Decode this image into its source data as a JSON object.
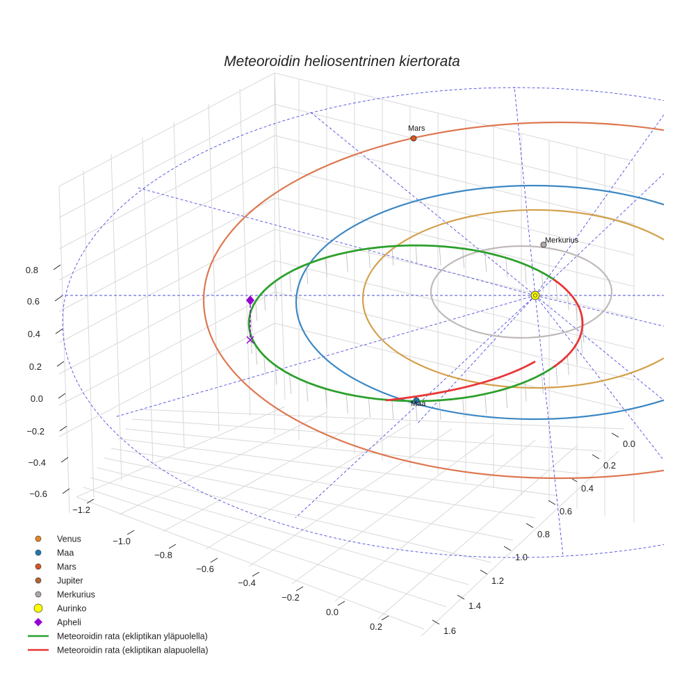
{
  "chart_data": {
    "type": "scatter",
    "title": "Meteoroidin heliosentrinen kiertorata",
    "xlabel": "",
    "ylabel": "",
    "zlabel": "",
    "x_ticks": [
      "−1.2",
      "−1.0",
      "−0.8",
      "−0.6",
      "−0.4",
      "−0.2",
      "0.0",
      "0.2"
    ],
    "y_ticks": [
      "0.0",
      "0.2",
      "0.4",
      "0.6",
      "0.8",
      "1.0",
      "1.2",
      "1.4",
      "1.6"
    ],
    "z_ticks": [
      "0.8",
      "0.6",
      "0.4",
      "0.2",
      "0.0",
      "−0.2",
      "−0.4",
      "−0.6"
    ],
    "grid": true,
    "legend_position": "bottom-left",
    "orbits": [
      {
        "name": "Merkurius",
        "color": "#bfbab8"
      },
      {
        "name": "Venus",
        "color": "#d4a04c"
      },
      {
        "name": "Maa",
        "color": "#3b87c4"
      },
      {
        "name": "Mars",
        "color": "#dd7750"
      }
    ],
    "points": [
      {
        "name": "Mars",
        "label": "Mars",
        "color": "#d9531e"
      },
      {
        "name": "Merkurius",
        "label": "Merkurius",
        "color": "#b0a8a8"
      },
      {
        "name": "Maa",
        "label": "Maa",
        "color": "#1f77b4"
      },
      {
        "name": "Aurinko",
        "label": "",
        "color": "#ffff00"
      },
      {
        "name": "Apheli",
        "label": "",
        "color": "#9400d3"
      }
    ],
    "meteoroid_orbit": [
      {
        "name": "Meteoroidin rata (ekliptikan yläpuolella)",
        "color": "#2ca02c"
      },
      {
        "name": "Meteoroidin rata (ekliptikan alapuolella)",
        "color": "#e83535"
      }
    ],
    "legend": [
      {
        "label": "Venus",
        "marker": "circle",
        "color": "#e6851f"
      },
      {
        "label": "Maa",
        "marker": "circle",
        "color": "#1f77b4"
      },
      {
        "label": "Mars",
        "marker": "circle",
        "color": "#d9531e"
      },
      {
        "label": "Jupiter",
        "marker": "circle",
        "color": "#b5652e"
      },
      {
        "label": "Merkurius",
        "marker": "circle",
        "color": "#b0a8a8"
      },
      {
        "label": "Aurinko",
        "marker": "circle-large",
        "color": "#ffff00"
      },
      {
        "label": "Apheli",
        "marker": "diamond",
        "color": "#9400d3"
      },
      {
        "label": "Meteoroidin rata (ekliptikan yläpuolella)",
        "marker": "line",
        "color": "#2ca02c"
      },
      {
        "label": "Meteoroidin rata (ekliptikan alapuolella)",
        "marker": "line",
        "color": "#e83535"
      }
    ]
  }
}
